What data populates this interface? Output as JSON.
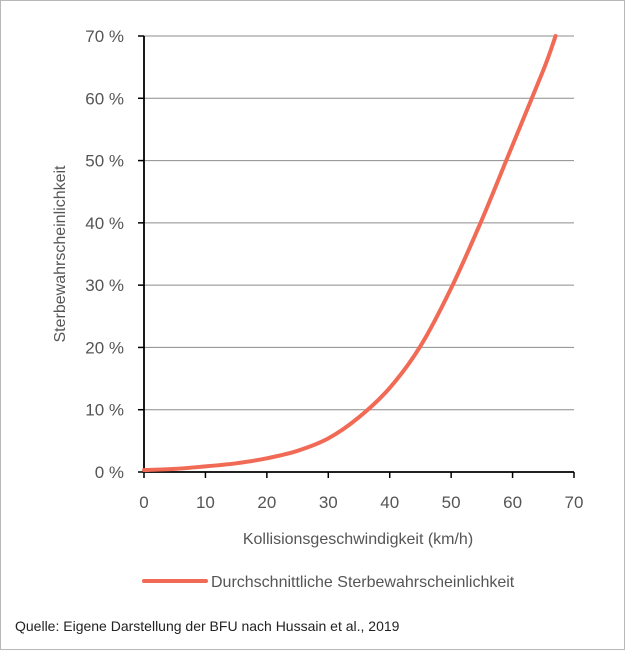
{
  "chart_data": {
    "type": "line",
    "xlabel": "Kollisionsgeschwindigkeit (km/h)",
    "ylabel": "Sterbewahrscheinlichkeit",
    "xlim": [
      0,
      70
    ],
    "ylim": [
      0,
      70
    ],
    "x_ticks": [
      0,
      10,
      20,
      30,
      40,
      50,
      60,
      70
    ],
    "y_ticks": [
      0,
      10,
      20,
      30,
      40,
      50,
      60,
      70
    ],
    "x_tick_labels": [
      "0",
      "10",
      "20",
      "30",
      "40",
      "50",
      "60",
      "70"
    ],
    "y_tick_labels": [
      "0 %",
      "10 %",
      "20 %",
      "30 %",
      "40 %",
      "50 %",
      "60 %",
      "70 %"
    ],
    "grid": "horizontal",
    "legend_position": "bottom",
    "series": [
      {
        "name": "Durchschnittliche Sterbewahrscheinlichkeit",
        "color": "#f06a55",
        "x": [
          0,
          5,
          10,
          15,
          20,
          25,
          30,
          35,
          40,
          45,
          50,
          55,
          60,
          65,
          67
        ],
        "y": [
          0.3,
          0.5,
          0.9,
          1.4,
          2.2,
          3.4,
          5.4,
          8.8,
          13.5,
          20.2,
          29.5,
          40.5,
          52.5,
          64.5,
          70
        ]
      }
    ]
  },
  "source": "Quelle: Eigene Darstellung der BFU nach Hussain et al., 2019"
}
